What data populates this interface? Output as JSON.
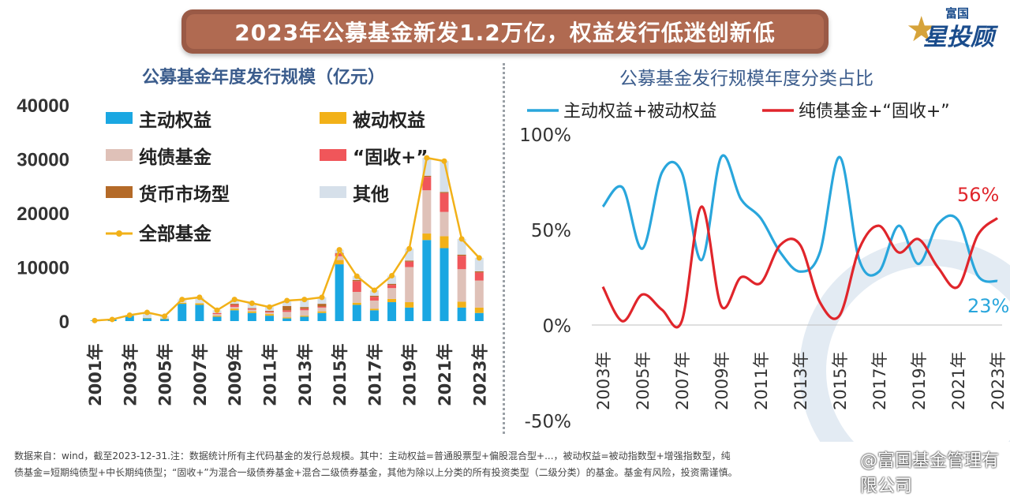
{
  "banner": {
    "title": "2023年公募基金新发1.2万亿，权益发行低迷创新低"
  },
  "logo": {
    "small": "富国",
    "big": "星投顾"
  },
  "left_chart_title": "公募基金年度发行规模（亿元）",
  "right_chart_title": "公募基金发行规模年度分类占比",
  "footnote": {
    "line1": "数据来自：wind，截至2023-12-31.注：数据统计所有主代码基金的发行总规模。其中：主动权益=普通股票型+偏股混合型+...，被动权益=被动指数型+增强指数型，纯",
    "line2": "债基金=短期纯债型+中长期纯债型；“固收+”为混合一级债券基金+混合二级债券基金，其他为除以上分类的所有投资类型（二级分类）的基金。基金有风险，投资需谨慎。"
  },
  "watermark": "@富国基金管理有限公司",
  "colors": {
    "active_equity": "#1aa7e2",
    "passive_equity": "#f2b118",
    "pure_bond": "#dfc1b8",
    "fixed_plus": "#f0565a",
    "money_market": "#b46a28",
    "other": "#d6e0ea",
    "total": "#f2b118",
    "line_equity": "#29a6dc",
    "line_bond": "#e0252b"
  },
  "chart_data": [
    {
      "type": "bar",
      "stacked": true,
      "ylim": [
        0,
        40000
      ],
      "yticks": [
        0,
        10000,
        20000,
        30000,
        40000
      ],
      "categories": [
        "2001年",
        "2002年",
        "2003年",
        "2004年",
        "2005年",
        "2006年",
        "2007年",
        "2008年",
        "2009年",
        "2010年",
        "2011年",
        "2012年",
        "2013年",
        "2014年",
        "2015年",
        "2016年",
        "2017年",
        "2018年",
        "2019年",
        "2020年",
        "2021年",
        "2022年",
        "2023年"
      ],
      "xtick_labels": [
        "2001年",
        "2003年",
        "2005年",
        "2007年",
        "2009年",
        "2011年",
        "2013年",
        "2015年",
        "2017年",
        "2019年",
        "2021年",
        "2023年"
      ],
      "legend_position": "top-left",
      "series": [
        {
          "name": "主动权益",
          "key": "active_equity",
          "values": [
            100,
            300,
            1000,
            500,
            400,
            3200,
            3000,
            800,
            2000,
            1500,
            1000,
            500,
            800,
            1500,
            10500,
            3000,
            2000,
            3500,
            2500,
            15000,
            13500,
            2500,
            1500
          ]
        },
        {
          "name": "被动权益",
          "key": "passive_equity",
          "values": [
            0,
            0,
            0,
            100,
            50,
            200,
            300,
            200,
            300,
            300,
            300,
            200,
            200,
            300,
            800,
            400,
            300,
            600,
            1000,
            1200,
            2200,
            1100,
            1000
          ]
        },
        {
          "name": "纯债基金",
          "key": "pure_bond",
          "values": [
            0,
            0,
            0,
            0,
            0,
            0,
            0,
            300,
            300,
            300,
            300,
            1000,
            1000,
            700,
            700,
            2000,
            1500,
            2000,
            6500,
            8000,
            4500,
            6000,
            5000
          ]
        },
        {
          "name": "“固收+”",
          "key": "fixed_plus",
          "values": [
            0,
            0,
            0,
            0,
            0,
            0,
            0,
            200,
            400,
            200,
            200,
            300,
            300,
            200,
            500,
            2000,
            700,
            600,
            1000,
            2500,
            3500,
            2500,
            1500
          ]
        },
        {
          "name": "货币市场型",
          "key": "money_market",
          "values": [
            0,
            0,
            0,
            0,
            0,
            0,
            0,
            0,
            200,
            100,
            100,
            800,
            300,
            500,
            100,
            200,
            200,
            200,
            200,
            200,
            200,
            200,
            200
          ]
        },
        {
          "name": "其他",
          "key": "other",
          "values": [
            0,
            0,
            100,
            1000,
            450,
            600,
            1100,
            500,
            800,
            900,
            700,
            1000,
            1400,
            1200,
            600,
            700,
            1000,
            1500,
            2200,
            3300,
            5700,
            2900,
            2500
          ]
        }
      ],
      "line": {
        "name": "全部基金",
        "key": "total",
        "values": [
          100,
          300,
          1100,
          1600,
          900,
          4000,
          4400,
          2000,
          4000,
          3300,
          2600,
          3800,
          4000,
          4400,
          13200,
          8300,
          5700,
          8400,
          13400,
          30200,
          29600,
          15200,
          11700
        ]
      }
    },
    {
      "type": "line",
      "ylim": [
        -50,
        100
      ],
      "yticks": [
        "-50%",
        "0%",
        "50%",
        "100%"
      ],
      "yticks_values": [
        -50,
        0,
        50,
        100
      ],
      "x": [
        "2003年",
        "2004年",
        "2005年",
        "2006年",
        "2007年",
        "2008年",
        "2009年",
        "2010年",
        "2011年",
        "2012年",
        "2013年",
        "2014年",
        "2015年",
        "2016年",
        "2017年",
        "2018年",
        "2019年",
        "2020年",
        "2021年",
        "2022年",
        "2023年"
      ],
      "xtick_labels": [
        "2003年",
        "2005年",
        "2007年",
        "2009年",
        "2011年",
        "2013年",
        "2015年",
        "2017年",
        "2019年",
        "2021年",
        "2023年"
      ],
      "legend_position": "top",
      "series": [
        {
          "name": "主动权益+被动权益",
          "key": "line_equity",
          "values": [
            62,
            72,
            40,
            80,
            80,
            34,
            88,
            66,
            56,
            38,
            28,
            38,
            88,
            34,
            28,
            52,
            32,
            53,
            55,
            26,
            23
          ]
        },
        {
          "name": "纯债基金+“固收+”",
          "key": "line_bond",
          "values": [
            20,
            2,
            16,
            8,
            2,
            62,
            10,
            25,
            22,
            42,
            42,
            12,
            5,
            40,
            52,
            38,
            45,
            30,
            20,
            47,
            56
          ]
        }
      ],
      "annotations": [
        {
          "text": "56%",
          "series": 1,
          "index": 20
        },
        {
          "text": "23%",
          "series": 0,
          "index": 20
        }
      ]
    }
  ]
}
